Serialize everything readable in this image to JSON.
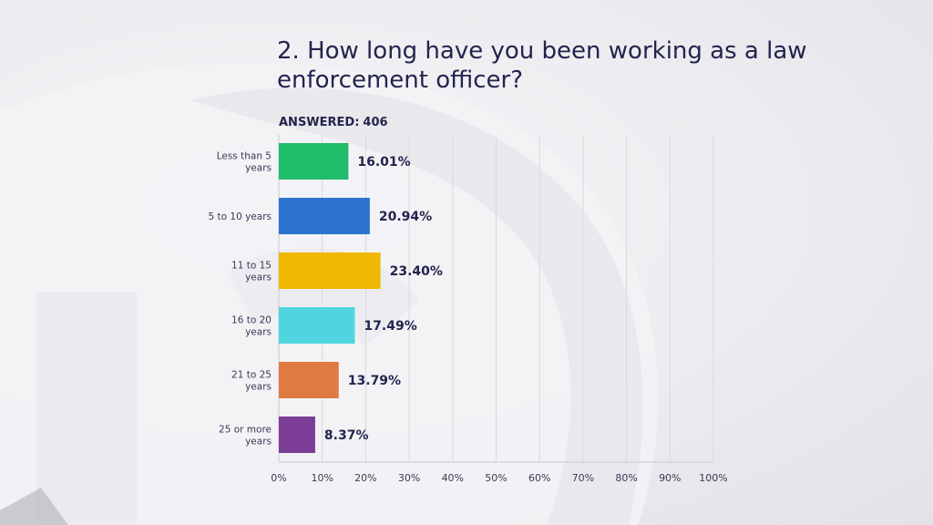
{
  "title": "2. How long have you been working as a law enforcement officer?",
  "answered_label": "ANSWERED:",
  "answered_count": "406",
  "colors": {
    "title": "#23244d",
    "gridline": "#d9d9de"
  },
  "chart_data": {
    "type": "bar",
    "orientation": "horizontal",
    "categories": [
      "Less than 5 years",
      "5 to 10 years",
      "11 to 15 years",
      "16 to 20 years",
      "21 to 25 years",
      "25 or more years"
    ],
    "values": [
      16.01,
      20.94,
      23.4,
      17.49,
      13.79,
      8.37
    ],
    "value_labels": [
      "16.01%",
      "20.94%",
      "23.40%",
      "17.49%",
      "13.79%",
      "8.37%"
    ],
    "bar_colors": [
      "#1fbc6a",
      "#2e72cf",
      "#f0b800",
      "#4fd5e0",
      "#e07a43",
      "#7b3d96"
    ],
    "xlim": [
      0,
      100
    ],
    "x_ticks": [
      "0%",
      "10%",
      "20%",
      "30%",
      "40%",
      "50%",
      "60%",
      "70%",
      "80%",
      "90%",
      "100%"
    ],
    "grid": true
  }
}
